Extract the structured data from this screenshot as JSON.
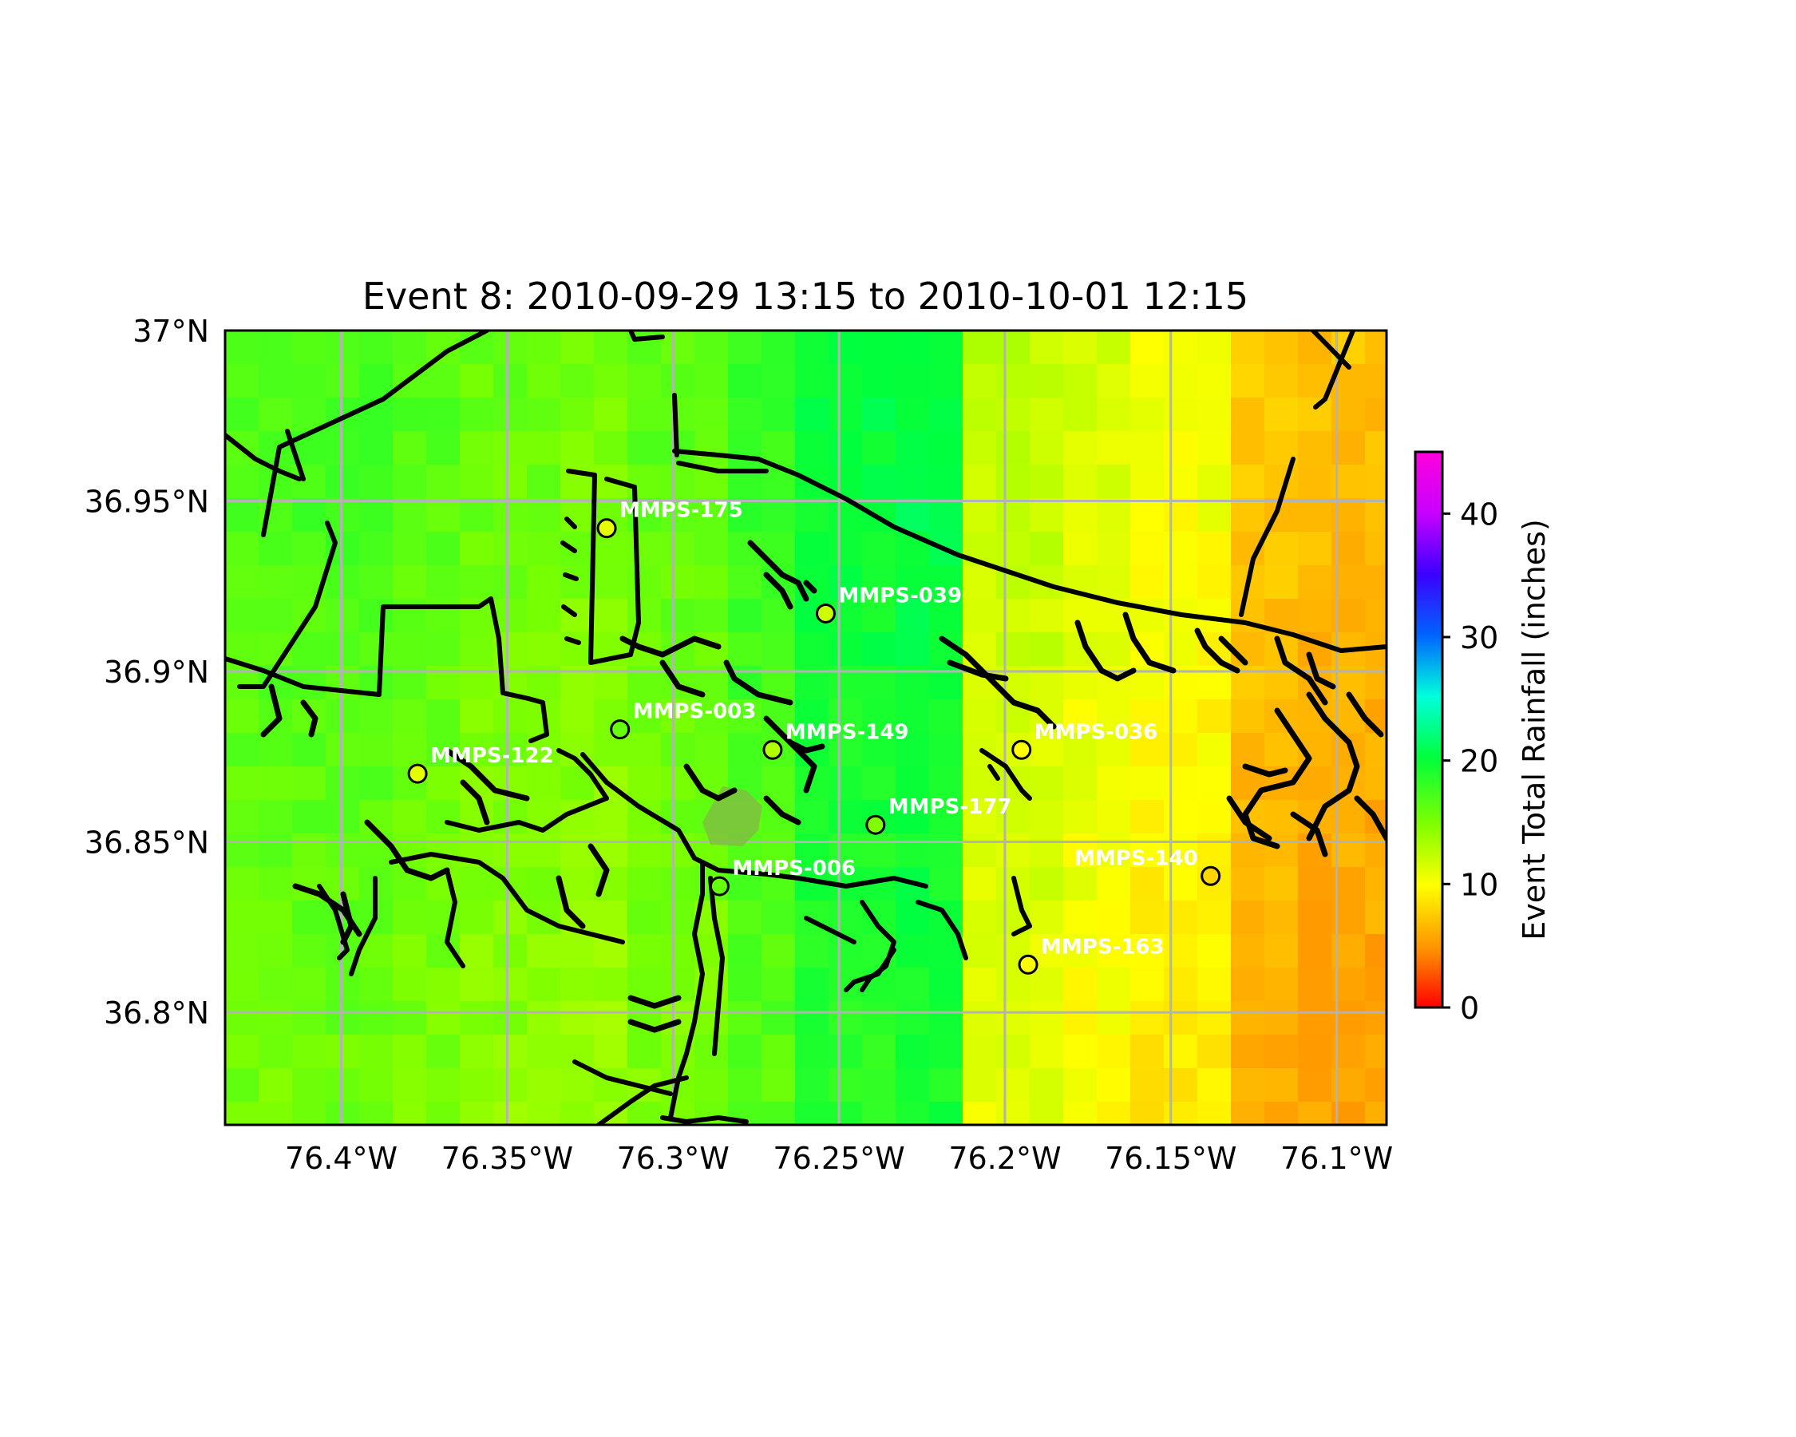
{
  "title": "Event 8: 2010-09-29 13:15 to 2010-10-01 12:15",
  "map_extent": {
    "lon_min": -76.435,
    "lon_max": -76.085,
    "lat_min": 36.767,
    "lat_max": 37.0
  },
  "lon_ticks": [
    {
      "value": -76.4,
      "label": "76.4°W"
    },
    {
      "value": -76.35,
      "label": "76.35°W"
    },
    {
      "value": -76.3,
      "label": "76.3°W"
    },
    {
      "value": -76.25,
      "label": "76.25°W"
    },
    {
      "value": -76.2,
      "label": "76.2°W"
    },
    {
      "value": -76.15,
      "label": "76.15°W"
    },
    {
      "value": -76.1,
      "label": "76.1°W"
    }
  ],
  "lat_ticks": [
    {
      "value": 37.0,
      "label": "37°N"
    },
    {
      "value": 36.95,
      "label": "36.95°N"
    },
    {
      "value": 36.9,
      "label": "36.9°N"
    },
    {
      "value": 36.85,
      "label": "36.85°N"
    },
    {
      "value": 36.8,
      "label": "36.8°N"
    }
  ],
  "grid": true,
  "colorbar": {
    "label": "Event Total Rainfall (inches)",
    "min": 0,
    "max": 45,
    "ticks": [
      {
        "value": 0,
        "label": "0"
      },
      {
        "value": 10,
        "label": "10"
      },
      {
        "value": 20,
        "label": "20"
      },
      {
        "value": 30,
        "label": "30"
      },
      {
        "value": 40,
        "label": "40"
      }
    ],
    "colormap": "gist_rainbow_r"
  },
  "rainfall_field": {
    "description_columns_lon": [
      -76.435,
      -76.41,
      -76.385,
      -76.36,
      -76.335,
      -76.31,
      -76.285,
      -76.26,
      -76.235,
      -76.21,
      -76.185,
      -76.16,
      -76.135,
      -76.11,
      -76.085
    ],
    "column_mean_inches": [
      16.5,
      16.8,
      16.2,
      15.5,
      15.0,
      16.0,
      17.5,
      19.5,
      20.0,
      12.0,
      11.0,
      10.0,
      7.0,
      6.5
    ],
    "row_mean_adjust_top_to_bottom": [
      0.5,
      0.3,
      0.0,
      -0.3,
      -0.5,
      -0.8,
      -1.0
    ]
  },
  "stations": [
    {
      "id": "MMPS-175",
      "lon": -76.32,
      "lat": 36.942,
      "rain": 11,
      "label_dx": 1,
      "label_dy": -1
    },
    {
      "id": "MMPS-039",
      "lon": -76.254,
      "lat": 36.917,
      "rain": 12,
      "label_dx": 1,
      "label_dy": -1
    },
    {
      "id": "MMPS-003",
      "lon": -76.316,
      "lat": 36.883,
      "rain": 16,
      "label_dx": 1,
      "label_dy": -1
    },
    {
      "id": "MMPS-149",
      "lon": -76.27,
      "lat": 36.877,
      "rain": 13,
      "label_dx": 1,
      "label_dy": -1
    },
    {
      "id": "MMPS-036",
      "lon": -76.195,
      "lat": 36.877,
      "rain": 10,
      "label_dx": 1,
      "label_dy": -1
    },
    {
      "id": "MMPS-122",
      "lon": -76.377,
      "lat": 36.87,
      "rain": 11,
      "label_dx": 1,
      "label_dy": -1
    },
    {
      "id": "MMPS-177",
      "lon": -76.239,
      "lat": 36.855,
      "rain": 15,
      "label_dx": 1,
      "label_dy": -1
    },
    {
      "id": "MMPS-140",
      "lon": -76.138,
      "lat": 36.84,
      "rain": 8,
      "label_dx": -1,
      "label_dy": -1
    },
    {
      "id": "MMPS-006",
      "lon": -76.286,
      "lat": 36.837,
      "rain": 16,
      "label_dx": 1,
      "label_dy": -1
    },
    {
      "id": "MMPS-163",
      "lon": -76.193,
      "lat": 36.814,
      "rain": 10,
      "label_dx": 1,
      "label_dy": -1
    }
  ],
  "colors": {
    "coastline": "#000000",
    "grid": "#b3b3b3",
    "station_label": "#ffffff",
    "highlight_region": "#7fbf3f"
  }
}
